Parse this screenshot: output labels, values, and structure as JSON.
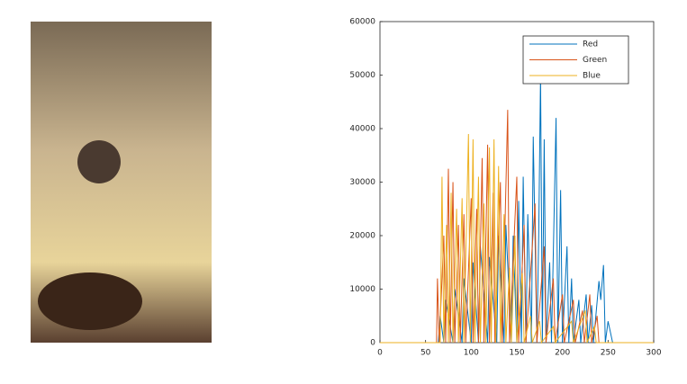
{
  "chart_data": {
    "type": "line",
    "xlim": [
      0,
      300
    ],
    "xticks": [
      0,
      50,
      100,
      150,
      200,
      250,
      300
    ],
    "ylim": [
      0,
      60000
    ],
    "yticks": [
      0,
      10000,
      20000,
      30000,
      40000,
      50000,
      60000
    ],
    "legend": "upper right",
    "series": [
      {
        "name": "Red",
        "color": "#0072bd",
        "x": [
          0,
          64,
          66,
          70,
          72,
          80,
          82,
          90,
          92,
          100,
          102,
          108,
          110,
          118,
          120,
          128,
          130,
          136,
          138,
          144,
          146,
          150,
          152,
          155,
          157,
          160,
          162,
          166,
          168,
          172,
          174,
          176,
          178,
          180,
          182,
          186,
          188,
          193,
          195,
          198,
          200,
          205,
          207,
          210,
          212,
          218,
          220,
          226,
          228,
          232,
          234,
          240,
          242,
          245,
          247,
          250,
          255,
          300
        ],
        "values": [
          0,
          0,
          5000,
          0,
          8000,
          0,
          10000,
          0,
          12000,
          0,
          15000,
          0,
          18000,
          0,
          16000,
          0,
          20000,
          0,
          22000,
          0,
          20000,
          0,
          26500,
          0,
          31000,
          0,
          24000,
          0,
          38500,
          0,
          20000,
          50000,
          0,
          38000,
          0,
          15000,
          0,
          42000,
          0,
          28500,
          0,
          18000,
          0,
          12000,
          0,
          8000,
          0,
          9000,
          0,
          7000,
          0,
          11500,
          8000,
          14500,
          0,
          4000,
          0,
          0
        ]
      },
      {
        "name": "Green",
        "color": "#d95319",
        "x": [
          0,
          62,
          63,
          65,
          70,
          72,
          75,
          77,
          80,
          82,
          86,
          88,
          92,
          94,
          100,
          102,
          106,
          108,
          112,
          114,
          118,
          120,
          124,
          126,
          132,
          134,
          140,
          142,
          150,
          152,
          158,
          160,
          170,
          172,
          180,
          182,
          190,
          192,
          200,
          202,
          212,
          214,
          222,
          224,
          230,
          232,
          238,
          240,
          300
        ],
        "values": [
          0,
          0,
          12000,
          0,
          20000,
          0,
          32500,
          0,
          30000,
          0,
          22000,
          0,
          24000,
          0,
          27000,
          0,
          25000,
          0,
          34500,
          0,
          37000,
          0,
          28000,
          0,
          30000,
          0,
          43500,
          0,
          31000,
          0,
          22000,
          0,
          26000,
          0,
          18000,
          0,
          12000,
          0,
          9000,
          0,
          8000,
          0,
          6000,
          0,
          9000,
          0,
          5000,
          0,
          0
        ]
      },
      {
        "name": "Blue",
        "color": "#edb120",
        "x": [
          0,
          66,
          68,
          70,
          73,
          75,
          78,
          80,
          84,
          86,
          90,
          92,
          97,
          99,
          102,
          104,
          108,
          110,
          114,
          116,
          120,
          122,
          125,
          127,
          130,
          132,
          136,
          138,
          142,
          144,
          148,
          150,
          156,
          158,
          165,
          167,
          175,
          177,
          190,
          192,
          210,
          212,
          225,
          227,
          235,
          237,
          300
        ],
        "values": [
          0,
          0,
          31000,
          0,
          22000,
          0,
          28000,
          0,
          25000,
          0,
          27000,
          0,
          39000,
          0,
          38000,
          0,
          31000,
          0,
          26000,
          0,
          36500,
          0,
          38000,
          0,
          33000,
          0,
          24000,
          0,
          14000,
          0,
          20000,
          0,
          13000,
          0,
          5000,
          0,
          4000,
          0,
          3000,
          0,
          4000,
          0,
          6000,
          0,
          3000,
          0,
          0
        ]
      }
    ]
  }
}
